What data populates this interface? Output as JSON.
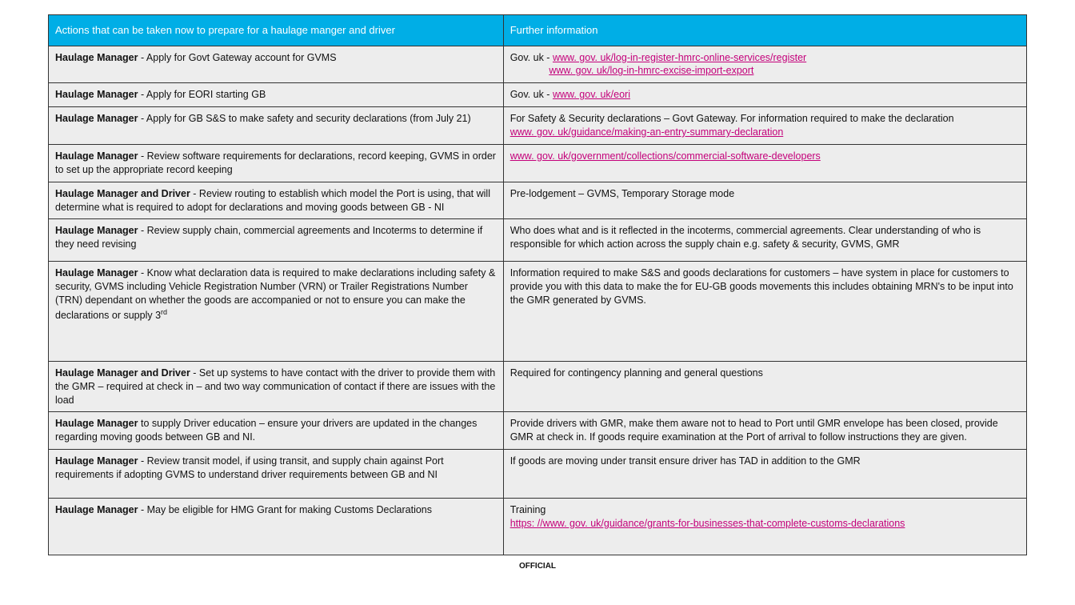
{
  "table": {
    "header_bg": "#00aee6",
    "header_fg": "#ffffff",
    "row_bg": "#ededed",
    "border_color": "#333333",
    "link_color": "#c4007a",
    "columns": [
      "Actions that can be taken now to prepare for a haulage manger and driver",
      "Further information"
    ],
    "rows": [
      {
        "role": "Haulage Manager",
        "action": " - Apply for Govt Gateway account for GVMS",
        "info_pre": "Gov. uk - ",
        "links": [
          "www. gov. uk/log-in-register-hmrc-online-services/register",
          "www. gov. uk/log-in-hmrc-excise-import-export"
        ],
        "link_sep": "newline_indent"
      },
      {
        "role": "Haulage Manager",
        "action": " - Apply for EORI starting GB",
        "info_pre": "Gov. uk - ",
        "links": [
          "www. gov. uk/eori"
        ]
      },
      {
        "role": "Haulage Manager",
        "action": " - Apply for GB S&S to make safety and security declarations (from July 21)",
        "info_pre": "For Safety & Security declarations – Govt Gateway. For information required to make the declaration ",
        "links": [
          "www. gov. uk/guidance/making-an-entry-summary-declaration"
        ],
        "link_sep": "newline"
      },
      {
        "role": "Haulage Manager",
        "action": " - Review software requirements for declarations, record keeping, GVMS in order to set up the appropriate record keeping",
        "info_pre": "",
        "links": [
          "www. gov. uk/government/collections/commercial-software-developers"
        ]
      },
      {
        "role": "Haulage Manager and Driver",
        "action": " - Review routing to establish which model the Port is using, that will determine what is required to adopt for declarations and moving goods between GB - NI",
        "info_pre": "Pre-lodgement – GVMS,  Temporary Storage mode",
        "links": []
      },
      {
        "role": "Haulage Manager",
        "action": " - Review supply chain, commercial agreements and Incoterms to determine if they need revising",
        "info_pre": "Who does what and is it reflected in the incoterms, commercial agreements. Clear understanding of who is responsible for which action across the supply chain e.g. safety & security, GVMS, GMR",
        "links": [],
        "pad_bottom": "12px"
      },
      {
        "role": "Haulage Manager",
        "action_html": " - Know what declaration data is required to make declarations including safety & security, GVMS including Vehicle Registration Number (VRN) or Trailer Registrations Number (TRN) dependant on whether the goods are accompanied or not to ensure you can make the declarations or supply 3<sup>rd</sup>",
        "info_pre": "Information required to make S&S and goods declarations for customers – have system in place for customers to provide you with this data to make the for EU-GB goods movements this includes obtaining MRN's to be input into the GMR generated by GVMS.",
        "links": [],
        "pad_bottom": "48px"
      },
      {
        "role": "Haulage Manager and Driver",
        "action": " - Set up systems to have contact with the driver to provide them with the GMR – required at check in – and two way communication of contact if there are issues with the load",
        "info_pre": "Required for contingency planning and general questions",
        "links": []
      },
      {
        "role": "Haulage Manager",
        "action": " to supply Driver education – ensure your drivers are updated in the changes regarding moving goods between GB and NI.",
        "info_pre": "Provide drivers with GMR, make them aware not to head to Port until GMR envelope has been closed, provide GMR at check in. If goods require examination at the Port of arrival to follow instructions they are given.",
        "links": []
      },
      {
        "role": "Haulage Manager",
        "action": " - Review transit model, if using transit, and supply chain against Port requirements if adopting GVMS to understand driver requirements between GB and NI",
        "info_pre": "If goods are moving under transit ensure driver has TAD in addition to the GMR",
        "links": [],
        "pad_bottom": "20px"
      },
      {
        "role": "Haulage Manager",
        "action": " - May be eligible for HMG Grant for making Customs Declarations",
        "info_pre": "Training",
        "links": [
          "https: //www. gov. uk/guidance/grants-for-businesses-that-complete-customs-declarations"
        ],
        "link_sep": "newline",
        "pad_bottom": "30px"
      }
    ]
  },
  "footer": "OFFICIAL"
}
